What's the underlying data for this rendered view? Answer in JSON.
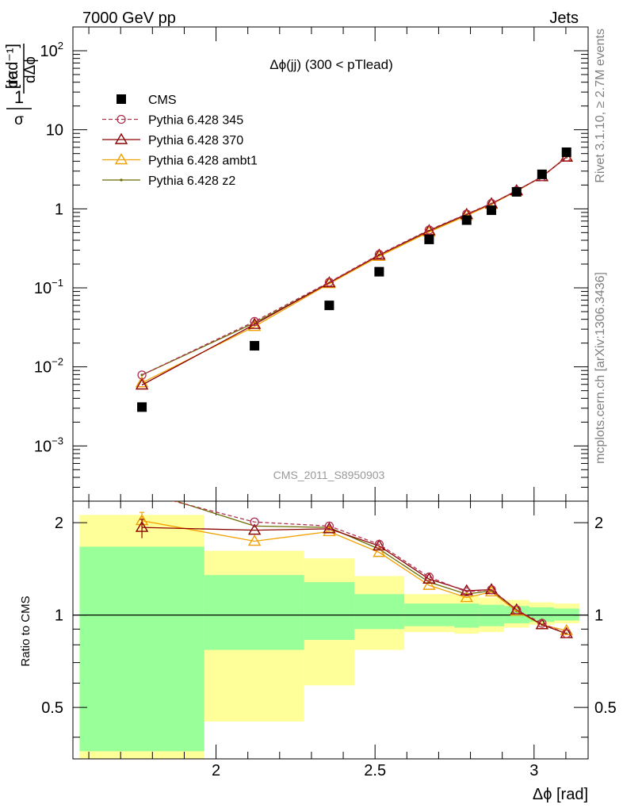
{
  "header": {
    "left": "7000 GeV pp",
    "right": "Jets"
  },
  "side": {
    "top": "Rivet 3.1.10, ≥ 2.7M events",
    "bottom": "mcplots.cern.ch [arXiv:1306.3436]"
  },
  "chart_data": [
    {
      "type": "scatter",
      "title": "Δϕ(jj) (300 < pTlead)",
      "ylabel": "1/σ dσ/dΔϕ [rad⁻¹]",
      "xlabel": "Δϕ [rad]",
      "yscale": "log",
      "xlim": [
        1.55,
        3.17
      ],
      "ylim": [
        0.0002,
        200
      ],
      "watermark": "CMS_2011_S8950903",
      "legend_position": "top-left",
      "x": [
        1.767,
        2.121,
        2.356,
        2.513,
        2.67,
        2.788,
        2.866,
        2.945,
        3.025,
        3.102
      ],
      "series": [
        {
          "name": "CMS",
          "color": "#000000",
          "marker": "square",
          "values": [
            0.0031,
            0.0185,
            0.06,
            0.16,
            0.41,
            0.72,
            0.96,
            1.64,
            2.73,
            5.2
          ]
        },
        {
          "name": "Pythia 6.428 345",
          "color": "#b03050",
          "marker": "circle",
          "dashed": true,
          "values": [
            0.0079,
            0.0375,
            0.118,
            0.265,
            0.54,
            0.86,
            1.17,
            1.7,
            2.55,
            4.5
          ]
        },
        {
          "name": "Pythia 6.428 370",
          "color": "#8b0000",
          "marker": "triangle",
          "values": [
            0.0059,
            0.0345,
            0.116,
            0.26,
            0.53,
            0.85,
            1.16,
            1.7,
            2.55,
            4.5
          ]
        },
        {
          "name": "Pythia 6.428 ambt1",
          "color": "#f0a000",
          "marker": "triangle",
          "values": [
            0.0063,
            0.0325,
            0.113,
            0.25,
            0.51,
            0.82,
            1.14,
            1.68,
            2.55,
            4.55
          ]
        },
        {
          "name": "Pythia 6.428 z2",
          "color": "#6b6b00",
          "marker": "dot",
          "values": [
            0.0079,
            0.036,
            0.115,
            0.26,
            0.52,
            0.84,
            1.15,
            1.68,
            2.55,
            4.5
          ]
        }
      ]
    },
    {
      "type": "line",
      "ylabel": "Ratio to CMS",
      "yscale": "log",
      "ylim": [
        0.34,
        2.35
      ],
      "xlim": [
        1.55,
        3.17
      ],
      "reference_line": 1,
      "bands": {
        "edges": [
          1.571,
          1.963,
          2.277,
          2.435,
          2.592,
          2.749,
          2.827,
          2.906,
          2.985,
          3.063,
          3.142
        ],
        "yellow": [
          [
            0.34,
            2.12
          ],
          [
            0.45,
            1.62
          ],
          [
            0.59,
            1.53
          ],
          [
            0.77,
            1.34
          ],
          [
            0.88,
            1.17
          ],
          [
            0.87,
            1.16
          ],
          [
            0.88,
            1.14
          ],
          [
            0.91,
            1.12
          ],
          [
            0.93,
            1.1
          ],
          [
            0.94,
            1.09
          ]
        ],
        "green": [
          [
            0.36,
            1.67
          ],
          [
            0.77,
            1.35
          ],
          [
            0.83,
            1.28
          ],
          [
            0.9,
            1.17
          ],
          [
            0.92,
            1.09
          ],
          [
            0.91,
            1.09
          ],
          [
            0.92,
            1.08
          ],
          [
            0.94,
            1.07
          ],
          [
            0.95,
            1.06
          ],
          [
            0.96,
            1.05
          ]
        ]
      },
      "x": [
        1.767,
        2.121,
        2.356,
        2.513,
        2.67,
        2.788,
        2.866,
        2.945,
        3.025,
        3.102
      ],
      "series": [
        {
          "name": "Pythia 6.428 345",
          "color": "#b03050",
          "marker": "circle",
          "dashed": true,
          "values": [
            2.5,
            2.01,
            1.95,
            1.7,
            1.33,
            1.19,
            1.21,
            1.04,
            0.94,
            0.87
          ]
        },
        {
          "name": "Pythia 6.428 370",
          "color": "#8b0000",
          "marker": "triangle",
          "values": [
            1.93,
            1.89,
            1.91,
            1.68,
            1.31,
            1.2,
            1.21,
            1.04,
            0.93,
            0.87
          ]
        },
        {
          "name": "Pythia 6.428 ambt1",
          "color": "#f0a000",
          "marker": "triangle",
          "values": [
            2.03,
            1.74,
            1.87,
            1.6,
            1.25,
            1.14,
            1.19,
            1.03,
            0.93,
            0.89
          ]
        },
        {
          "name": "Pythia 6.428 z2",
          "color": "#6b6b00",
          "marker": "dot",
          "values": [
            2.55,
            1.95,
            1.93,
            1.64,
            1.28,
            1.17,
            1.2,
            1.03,
            0.93,
            0.87
          ]
        }
      ],
      "error_bars": {
        "Pythia 6.428 ambt1": [
          [
            1.9,
            2.16
          ]
        ],
        "Pythia 6.428 370": [
          [
            1.78,
            2.05
          ]
        ]
      }
    }
  ],
  "ticks": {
    "x": [
      "2",
      "2.5",
      "3"
    ],
    "ratio": [
      "0.5",
      "1",
      "2"
    ]
  }
}
